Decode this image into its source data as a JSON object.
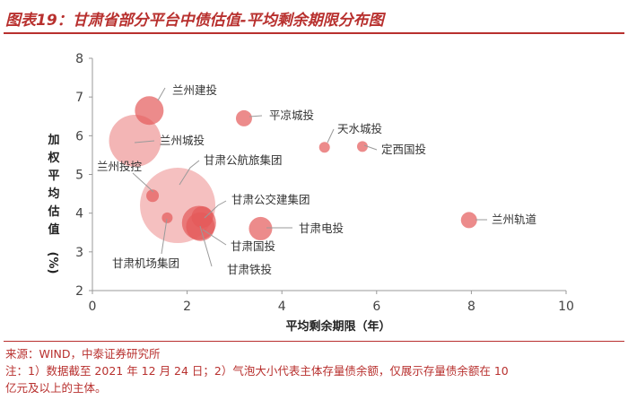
{
  "header": {
    "title": "图表19：甘肃省部分平台中债估值-平均剩余期限分布图"
  },
  "chart_data": {
    "type": "scatter",
    "xlabel": "平均剩余期限（年）",
    "ylabel_chars": [
      "加",
      "权",
      "平",
      "均",
      "估",
      "值"
    ],
    "ylabel_unit": "(%)",
    "xlim": [
      0,
      10
    ],
    "ylim": [
      2,
      8
    ],
    "x_ticks": [
      "0",
      "2",
      "4",
      "6",
      "8",
      "10"
    ],
    "y_ticks": [
      "2",
      "3",
      "4",
      "5",
      "6",
      "7",
      "8"
    ],
    "grid": false,
    "bubble_color": "#e45a5a",
    "points": [
      {
        "name": "兰州建投",
        "x": 1.2,
        "y": 6.65,
        "size": 16
      },
      {
        "name": "平凉城投",
        "x": 3.2,
        "y": 6.45,
        "size": 9
      },
      {
        "name": "天水城投",
        "x": 4.9,
        "y": 5.7,
        "size": 6
      },
      {
        "name": "定西国投",
        "x": 5.7,
        "y": 5.72,
        "size": 6
      },
      {
        "name": "兰州城投",
        "x": 0.9,
        "y": 5.87,
        "size": 29
      },
      {
        "name": "兰州投控",
        "x": 1.27,
        "y": 4.45,
        "size": 7
      },
      {
        "name": "甘肃公航旅集团",
        "x": 1.8,
        "y": 4.2,
        "size": 42
      },
      {
        "name": "甘肃机场集团",
        "x": 1.58,
        "y": 3.88,
        "size": 6
      },
      {
        "name": "甘肃公交建集团",
        "x": 2.32,
        "y": 3.9,
        "size": 12
      },
      {
        "name": "甘肃国投",
        "x": 2.28,
        "y": 3.65,
        "size": 16
      },
      {
        "name": "甘肃铁投",
        "x": 2.25,
        "y": 3.75,
        "size": 19
      },
      {
        "name": "甘肃电投",
        "x": 3.55,
        "y": 3.6,
        "size": 13
      },
      {
        "name": "兰州轨道",
        "x": 7.95,
        "y": 3.82,
        "size": 9
      }
    ]
  },
  "footer": {
    "source": "来源：WIND，中泰证券研究所",
    "note_line1": "注：1）数据截至 2021 年 12 月 24 日；2）气泡大小代表主体存量债余额，仅展示存量债余额在 10",
    "note_line2": "亿元及以上的主体。"
  }
}
